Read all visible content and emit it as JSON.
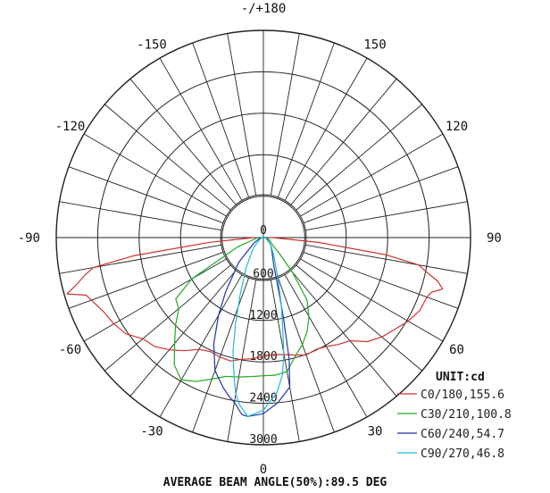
{
  "chart_data": {
    "type": "polar",
    "unit_label": "UNIT:cd",
    "footer": "AVERAGE BEAM ANGLE(50%):89.5 DEG",
    "angle_labels": [
      {
        "angle": 180,
        "text": "-/+180"
      },
      {
        "angle": 150,
        "text": "150"
      },
      {
        "angle": -150,
        "text": "-150"
      },
      {
        "angle": 120,
        "text": "120"
      },
      {
        "angle": -120,
        "text": "-120"
      },
      {
        "angle": 90,
        "text": "90"
      },
      {
        "angle": -90,
        "text": "-90"
      },
      {
        "angle": 60,
        "text": "60"
      },
      {
        "angle": -60,
        "text": "-60"
      },
      {
        "angle": 30,
        "text": "30"
      },
      {
        "angle": -30,
        "text": "-30"
      },
      {
        "angle": 0,
        "text": "0"
      }
    ],
    "radial_ticks": [
      0,
      600,
      1200,
      1800,
      2400,
      3000
    ],
    "rmax": 3000,
    "angle_step": 10,
    "series": [
      {
        "name": "C0/180,155.6",
        "color": "#cc3333",
        "points": [
          [
            -90,
            130
          ],
          [
            -85,
            780
          ],
          [
            -82,
            1900
          ],
          [
            -80,
            2500
          ],
          [
            -78,
            2650
          ],
          [
            -76,
            2780
          ],
          [
            -74,
            2960
          ],
          [
            -72,
            2700
          ],
          [
            -70,
            2650
          ],
          [
            -65,
            2550
          ],
          [
            -60,
            2500
          ],
          [
            -55,
            2430
          ],
          [
            -50,
            2280
          ],
          [
            -45,
            2230
          ],
          [
            -40,
            2120
          ],
          [
            -35,
            2000
          ],
          [
            -30,
            1870
          ],
          [
            -25,
            1820
          ],
          [
            -20,
            1840
          ],
          [
            -15,
            1850
          ],
          [
            -10,
            1790
          ],
          [
            -5,
            1760
          ],
          [
            0,
            1720
          ],
          [
            5,
            1700
          ],
          [
            10,
            1720
          ],
          [
            15,
            1760
          ],
          [
            20,
            1810
          ],
          [
            25,
            1790
          ],
          [
            30,
            1820
          ],
          [
            35,
            1890
          ],
          [
            40,
            1950
          ],
          [
            45,
            2130
          ],
          [
            50,
            2240
          ],
          [
            55,
            2320
          ],
          [
            60,
            2420
          ],
          [
            65,
            2500
          ],
          [
            70,
            2520
          ],
          [
            72,
            2560
          ],
          [
            74,
            2700
          ],
          [
            76,
            2600
          ],
          [
            78,
            2420
          ],
          [
            80,
            2280
          ],
          [
            82,
            1800
          ],
          [
            85,
            800
          ],
          [
            90,
            130
          ]
        ]
      },
      {
        "name": "C30/210,100.8",
        "color": "#22aa22",
        "points": [
          [
            -90,
            80
          ],
          [
            -70,
            400
          ],
          [
            -60,
            1200
          ],
          [
            -55,
            1550
          ],
          [
            -50,
            1600
          ],
          [
            -45,
            1800
          ],
          [
            -40,
            2000
          ],
          [
            -35,
            2250
          ],
          [
            -30,
            2380
          ],
          [
            -25,
            2300
          ],
          [
            -20,
            2180
          ],
          [
            -15,
            2080
          ],
          [
            -10,
            2050
          ],
          [
            -5,
            2020
          ],
          [
            0,
            2000
          ],
          [
            5,
            2000
          ],
          [
            10,
            1970
          ],
          [
            15,
            1780
          ],
          [
            20,
            1650
          ],
          [
            25,
            1500
          ],
          [
            30,
            1320
          ],
          [
            35,
            1100
          ],
          [
            40,
            650
          ],
          [
            45,
            330
          ],
          [
            50,
            180
          ],
          [
            60,
            120
          ],
          [
            90,
            60
          ]
        ]
      },
      {
        "name": "C60/240,54.7",
        "color": "#2233aa",
        "points": [
          [
            -90,
            40
          ],
          [
            -60,
            160
          ],
          [
            -45,
            500
          ],
          [
            -35,
            950
          ],
          [
            -30,
            1300
          ],
          [
            -25,
            1700
          ],
          [
            -20,
            2050
          ],
          [
            -15,
            2250
          ],
          [
            -12,
            2360
          ],
          [
            -10,
            2420
          ],
          [
            -7,
            2580
          ],
          [
            -5,
            2600
          ],
          [
            0,
            2550
          ],
          [
            5,
            2400
          ],
          [
            10,
            2200
          ],
          [
            12,
            1800
          ],
          [
            14,
            1200
          ],
          [
            16,
            800
          ],
          [
            20,
            450
          ],
          [
            30,
            250
          ],
          [
            45,
            150
          ],
          [
            90,
            40
          ]
        ]
      },
      {
        "name": "C90/270,46.8",
        "color": "#22bbcc",
        "points": [
          [
            -90,
            30
          ],
          [
            -45,
            200
          ],
          [
            -30,
            500
          ],
          [
            -22,
            900
          ],
          [
            -18,
            1300
          ],
          [
            -15,
            1700
          ],
          [
            -12,
            2050
          ],
          [
            -10,
            2300
          ],
          [
            -8,
            2450
          ],
          [
            -5,
            2600
          ],
          [
            0,
            2500
          ],
          [
            5,
            2250
          ],
          [
            8,
            2000
          ],
          [
            10,
            1700
          ],
          [
            12,
            1350
          ],
          [
            15,
            1000
          ],
          [
            20,
            600
          ],
          [
            30,
            300
          ],
          [
            45,
            150
          ],
          [
            90,
            30
          ]
        ]
      }
    ]
  }
}
